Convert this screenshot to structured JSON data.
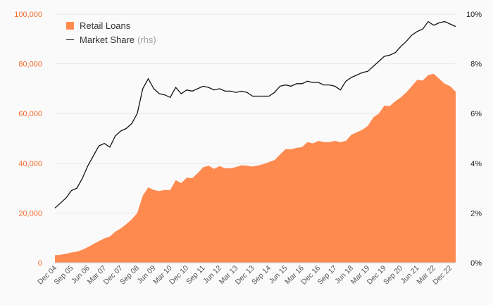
{
  "colors": {
    "area": "#ff8a50",
    "left_axis": "#f26b2a",
    "line": "#111111",
    "grid": "#e6e6e6",
    "axis_text": "#555555"
  },
  "legend": {
    "area_label": "Retail Loans",
    "line_label": "Market Share",
    "line_suffix": "(rhs)"
  },
  "chart_data": {
    "type": "area",
    "x": [
      "Dec 04",
      "Mar 05",
      "Jun 05",
      "Sep 05",
      "Dec 05",
      "Mar 06",
      "Jun 06",
      "Sep 06",
      "Dec 06",
      "Mar 07",
      "Jun 07",
      "Sep 07",
      "Dec 07",
      "Mar 08",
      "Jun 08",
      "Sep 08",
      "Dec 08",
      "Mar 09",
      "Jun 09",
      "Sep 09",
      "Dec 09",
      "Mar 10",
      "Jun 10",
      "Sep 10",
      "Dec 10",
      "Mar 11",
      "Jun 11",
      "Sep 11",
      "Dec 11",
      "Mar 12",
      "Jun 12",
      "Sep 12",
      "Dec 12",
      "Mar 13",
      "Jun 13",
      "Sep 13",
      "Dec 13",
      "Mar 14",
      "Jun 14",
      "Sep 14",
      "Dec 14",
      "Mar 15",
      "Jun 15",
      "Sep 15",
      "Dec 15",
      "Mar 16",
      "Jun 16",
      "Sep 16",
      "Dec 16",
      "Mar 17",
      "Jun 17",
      "Sep 17",
      "Dec 17",
      "Mar 18",
      "Jun 18",
      "Sep 18",
      "Dec 18",
      "Mar 19",
      "Jun 19",
      "Sep 19",
      "Dec 19",
      "Mar 20",
      "Jun 20",
      "Sep 20",
      "Dec 20",
      "Mar 21",
      "Jun 21",
      "Sep 21",
      "Dec 21",
      "Mar 22",
      "Jun 22",
      "Sep 22",
      "Dec 22",
      "Mar 23"
    ],
    "x_tick_labels": [
      "Dec 04",
      "Sep 05",
      "Jun 06",
      "Mar 07",
      "Dec 07",
      "Sep 08",
      "Jun 09",
      "Mar 10",
      "Dec 10",
      "Sep 11",
      "Jun 12",
      "Mar 13",
      "Dec 13",
      "Sep 14",
      "Jun 15",
      "Mar 16",
      "Dec 16",
      "Sep 17",
      "Jun 18",
      "Mar 19",
      "Dec 19",
      "Sep 20",
      "Jun 21",
      "Mar 22",
      "Dec 22"
    ],
    "series": [
      {
        "name": "Retail Loans",
        "axis": "left",
        "style": "area",
        "values": [
          3000,
          3200,
          3600,
          4100,
          4500,
          5200,
          6300,
          7500,
          8700,
          9800,
          10500,
          12500,
          13800,
          15500,
          17500,
          20000,
          27000,
          30300,
          29300,
          28800,
          29300,
          29200,
          33200,
          32000,
          34200,
          34000,
          36000,
          38400,
          39000,
          37800,
          38900,
          38000,
          38000,
          38500,
          39200,
          39000,
          38700,
          39100,
          39700,
          40500,
          41300,
          43500,
          45700,
          45600,
          46200,
          46500,
          48500,
          48000,
          49000,
          48500,
          48500,
          49000,
          48500,
          49000,
          51500,
          52500,
          53500,
          55000,
          58500,
          60000,
          63200,
          63000,
          65000,
          66500,
          68500,
          71000,
          73500,
          73300,
          75500,
          76000,
          74000,
          72000,
          71000,
          68800
        ]
      },
      {
        "name": "Market Share",
        "axis": "right",
        "style": "line",
        "values": [
          2.2,
          2.4,
          2.6,
          2.9,
          3.0,
          3.4,
          3.9,
          4.3,
          4.7,
          4.8,
          4.65,
          5.1,
          5.3,
          5.4,
          5.6,
          6.0,
          7.0,
          7.4,
          7.0,
          6.8,
          6.75,
          6.65,
          7.05,
          6.8,
          6.95,
          6.9,
          7.0,
          7.1,
          7.05,
          6.95,
          7.0,
          6.9,
          6.9,
          6.85,
          6.9,
          6.85,
          6.7,
          6.7,
          6.7,
          6.7,
          6.85,
          7.1,
          7.15,
          7.1,
          7.2,
          7.2,
          7.3,
          7.25,
          7.25,
          7.15,
          7.15,
          7.1,
          6.95,
          7.3,
          7.45,
          7.55,
          7.65,
          7.7,
          7.9,
          8.1,
          8.3,
          8.35,
          8.45,
          8.7,
          8.9,
          9.15,
          9.3,
          9.4,
          9.7,
          9.55,
          9.65,
          9.7,
          9.6,
          9.5
        ]
      }
    ],
    "y_left": {
      "ylim": [
        0,
        100000
      ],
      "ticks": [
        0,
        20000,
        40000,
        60000,
        80000,
        100000
      ],
      "tick_labels": [
        "0",
        "20,000",
        "40,000",
        "60,000",
        "80,000",
        "100,000"
      ]
    },
    "y_right": {
      "ylim": [
        0,
        10
      ],
      "ticks": [
        0,
        2,
        4,
        6,
        8,
        10
      ],
      "tick_labels": [
        "0%",
        "2%",
        "4%",
        "6%",
        "8%",
        "10%"
      ]
    },
    "grid": true,
    "legend_position": "top-left"
  }
}
